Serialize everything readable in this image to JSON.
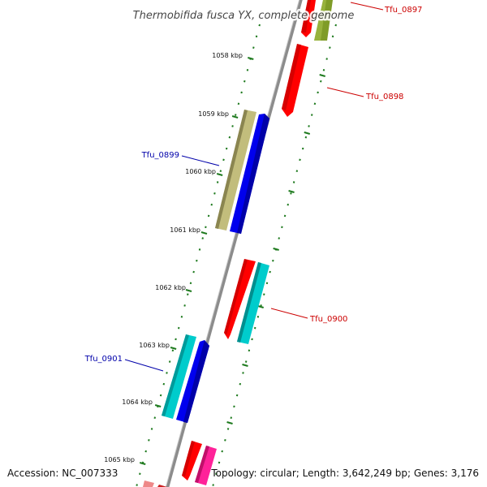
{
  "title": "Thermobifida fusca YX, complete genome",
  "footer": {
    "accession": "Accession: NC_007333",
    "summary": "Topology: circular; Length: 3,642,249 bp; Genes: 3,176"
  },
  "ticks": [
    {
      "label": "1058 kbp"
    },
    {
      "label": "1059 kbp"
    },
    {
      "label": "1060 kbp"
    },
    {
      "label": "1061 kbp"
    },
    {
      "label": "1062 kbp"
    },
    {
      "label": "1063 kbp"
    },
    {
      "label": "1064 kbp"
    },
    {
      "label": "1065 kbp"
    }
  ],
  "gene_labels": [
    {
      "name": "Tfu_0897",
      "color": "#cc0000"
    },
    {
      "name": "Tfu_0898",
      "color": "#cc0000"
    },
    {
      "name": "Tfu_0899",
      "color": "#0000aa"
    },
    {
      "name": "Tfu_0900",
      "color": "#cc0000"
    },
    {
      "name": "Tfu_0901",
      "color": "#0000aa"
    }
  ],
  "colors": {
    "backbone": "#8c8c8c",
    "tick_dots": "#1e7a1e",
    "red": "#ff0000",
    "olive": "#7f9c28",
    "khaki": "#c2bd7c",
    "blue": "#0000ee",
    "cyan": "#00cccc",
    "pink": "#ff2299",
    "salmon": "#ee8888"
  }
}
